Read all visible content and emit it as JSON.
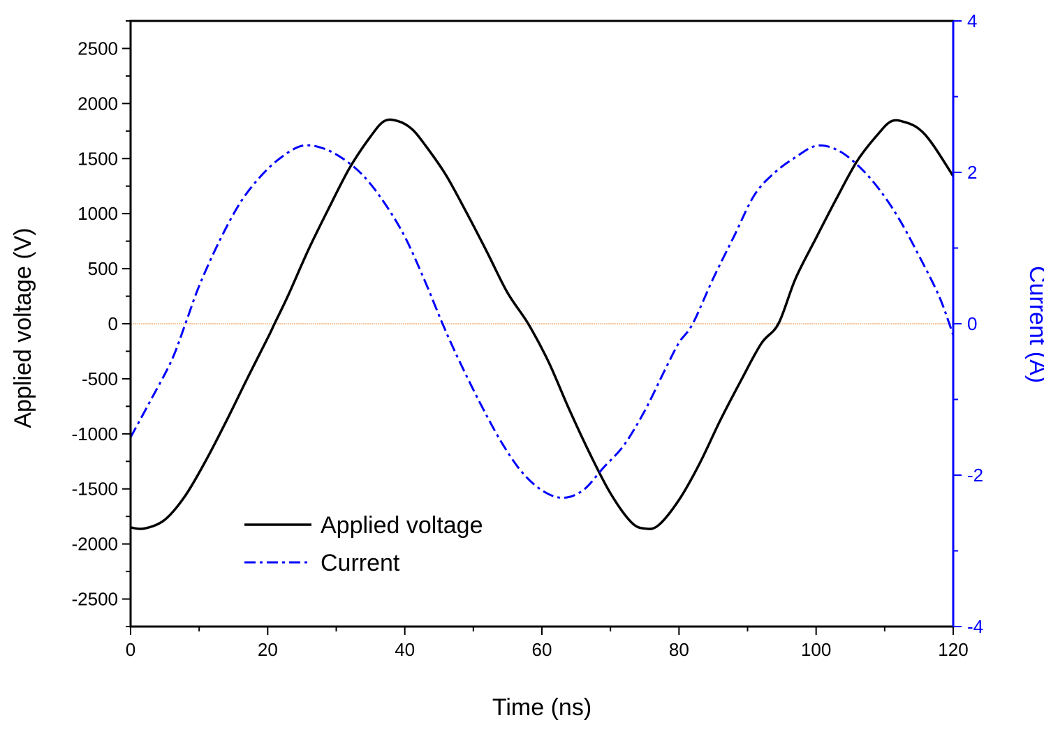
{
  "chart_data": {
    "type": "line",
    "xlabel": "Time (ns)",
    "ylabel_left": "Applied voltage (V)",
    "ylabel_right": "Current (A)",
    "xlim": [
      0,
      120
    ],
    "ylim_left": [
      -2750,
      2750
    ],
    "ylim_right": [
      -4,
      4
    ],
    "x_ticks": [
      "0",
      "20",
      "40",
      "60",
      "80",
      "100",
      "120"
    ],
    "y_left_ticks": [
      "-2500",
      "-2000",
      "-1500",
      "-1000",
      "-500",
      "0",
      "500",
      "1000",
      "1500",
      "2000",
      "2500"
    ],
    "y_right_ticks": [
      "-4",
      "-2",
      "0",
      "2",
      "4"
    ],
    "legend_position": "lower-left",
    "reference_line": {
      "axis": "left",
      "value": 0,
      "color": "#f4a460"
    },
    "series": [
      {
        "name": "Applied voltage",
        "axis": "left",
        "color": "#000000",
        "style": "solid",
        "points": [
          [
            0,
            -1850
          ],
          [
            2,
            -1860
          ],
          [
            5,
            -1780
          ],
          [
            8,
            -1560
          ],
          [
            11,
            -1240
          ],
          [
            14,
            -880
          ],
          [
            17,
            -500
          ],
          [
            20,
            -130
          ],
          [
            21,
            0
          ],
          [
            23,
            260
          ],
          [
            26,
            680
          ],
          [
            29,
            1060
          ],
          [
            32,
            1420
          ],
          [
            35,
            1700
          ],
          [
            37,
            1840
          ],
          [
            39,
            1840
          ],
          [
            41,
            1770
          ],
          [
            43,
            1620
          ],
          [
            46,
            1350
          ],
          [
            49,
            1010
          ],
          [
            52,
            650
          ],
          [
            55,
            280
          ],
          [
            58,
            0
          ],
          [
            61,
            -350
          ],
          [
            64,
            -780
          ],
          [
            67,
            -1180
          ],
          [
            70,
            -1540
          ],
          [
            73,
            -1800
          ],
          [
            75,
            -1860
          ],
          [
            77,
            -1830
          ],
          [
            80,
            -1600
          ],
          [
            83,
            -1270
          ],
          [
            86,
            -880
          ],
          [
            89,
            -520
          ],
          [
            92,
            -180
          ],
          [
            94.5,
            0
          ],
          [
            97,
            410
          ],
          [
            100,
            780
          ],
          [
            103,
            1140
          ],
          [
            106,
            1480
          ],
          [
            109,
            1720
          ],
          [
            111,
            1840
          ],
          [
            113,
            1830
          ],
          [
            115,
            1770
          ],
          [
            117,
            1630
          ],
          [
            120,
            1340
          ]
        ]
      },
      {
        "name": "Current",
        "axis": "right",
        "color": "#0000ff",
        "style": "dash-dot",
        "points": [
          [
            0,
            -1.5
          ],
          [
            3,
            -1.0
          ],
          [
            6,
            -0.48
          ],
          [
            8,
            0
          ],
          [
            10,
            0.5
          ],
          [
            13,
            1.1
          ],
          [
            16,
            1.6
          ],
          [
            19,
            1.95
          ],
          [
            22,
            2.2
          ],
          [
            25,
            2.35
          ],
          [
            28,
            2.32
          ],
          [
            31,
            2.18
          ],
          [
            34,
            1.95
          ],
          [
            37,
            1.6
          ],
          [
            40,
            1.15
          ],
          [
            43,
            0.55
          ],
          [
            45.5,
            0
          ],
          [
            48,
            -0.5
          ],
          [
            51,
            -1.05
          ],
          [
            54,
            -1.55
          ],
          [
            57,
            -1.95
          ],
          [
            60,
            -2.2
          ],
          [
            63,
            -2.3
          ],
          [
            66,
            -2.2
          ],
          [
            69,
            -1.9
          ],
          [
            72,
            -1.6
          ],
          [
            75,
            -1.15
          ],
          [
            78,
            -0.6
          ],
          [
            80,
            -0.25
          ],
          [
            82,
            0
          ],
          [
            85,
            0.6
          ],
          [
            88,
            1.15
          ],
          [
            91,
            1.7
          ],
          [
            94,
            2.0
          ],
          [
            97,
            2.2
          ],
          [
            100,
            2.35
          ],
          [
            103,
            2.3
          ],
          [
            106,
            2.1
          ],
          [
            109,
            1.8
          ],
          [
            112,
            1.4
          ],
          [
            115,
            0.9
          ],
          [
            118,
            0.35
          ],
          [
            120,
            -0.15
          ]
        ]
      }
    ]
  }
}
